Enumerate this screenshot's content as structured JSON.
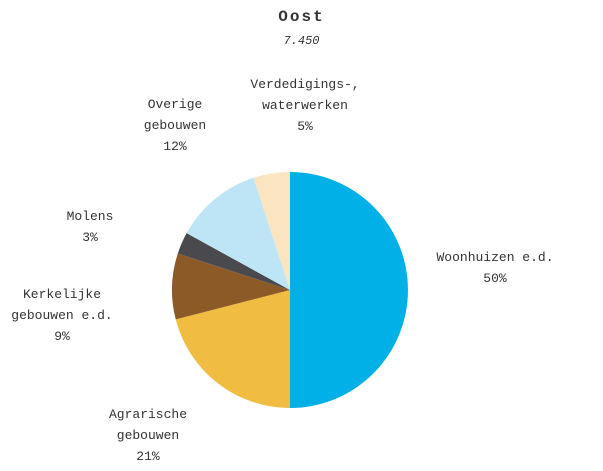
{
  "chart_data": {
    "type": "pie",
    "title": "Oost",
    "subtitle": "7.450",
    "categories": [
      "Woonhuizen e.d.",
      "Agrarische gebouwen",
      "Kerkelijke gebouwen e.d.",
      "Molens",
      "Overige gebouwen",
      "Verdedigings-, waterwerken"
    ],
    "values": [
      50,
      21,
      9,
      3,
      12,
      5
    ],
    "value_labels": [
      "50%",
      "21%",
      "9%",
      "3%",
      "12%",
      "5%"
    ],
    "colors": [
      "#00b0e6",
      "#f0bc42",
      "#8c5a26",
      "#4a4a4e",
      "#bde5f6",
      "#fae5c0"
    ]
  }
}
